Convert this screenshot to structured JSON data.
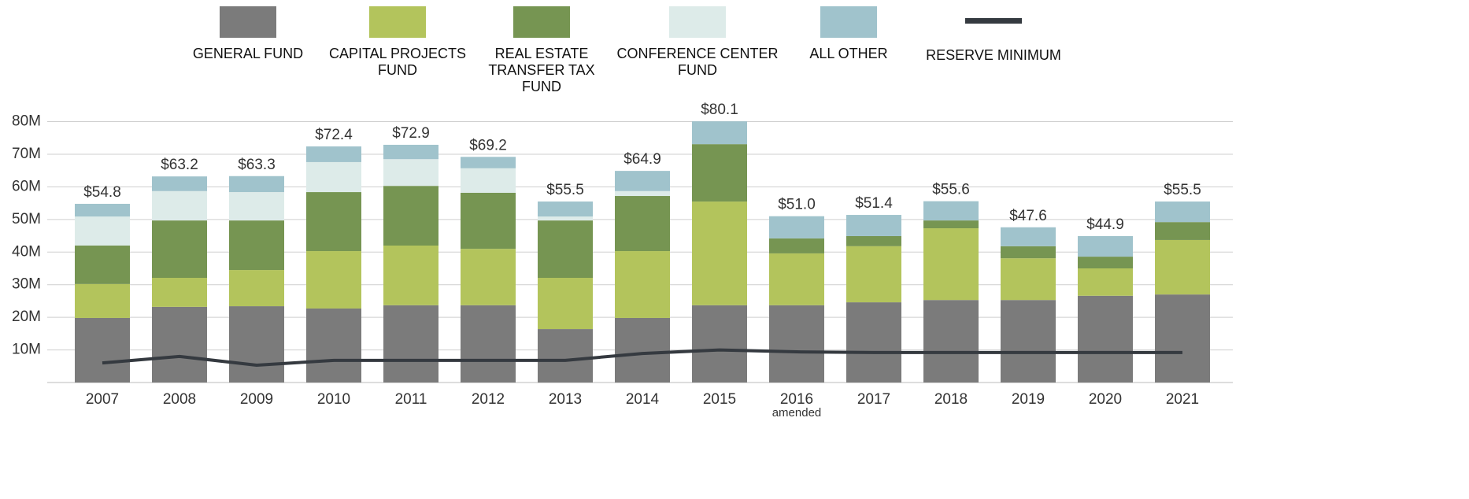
{
  "chart_data": {
    "type": "stacked_bar_line",
    "categories": [
      "2007",
      "2008",
      "2009",
      "2010",
      "2011",
      "2012",
      "2013",
      "2014",
      "2015",
      "2016",
      "2017",
      "2018",
      "2019",
      "2020",
      "2021"
    ],
    "category_note": {
      "category": 9,
      "text": "amended"
    },
    "series": [
      {
        "name": "GENERAL FUND",
        "color": "#7b7b7b",
        "values": [
          19.8,
          23.2,
          23.4,
          22.7,
          23.7,
          23.7,
          16.4,
          19.8,
          23.7,
          23.7,
          24.6,
          25.3,
          25.3,
          26.6,
          27.0
        ]
      },
      {
        "name": "CAPITAL PROJECTS FUND",
        "color": "#b3c45c",
        "values": [
          10.4,
          8.9,
          11.1,
          17.6,
          18.3,
          17.3,
          15.7,
          20.5,
          31.8,
          15.9,
          17.2,
          22.0,
          12.8,
          8.4,
          16.7
        ]
      },
      {
        "name": "REAL ESTATE TRANSFER TAX FUND",
        "color": "#769552",
        "values": [
          11.8,
          17.6,
          15.2,
          18.1,
          18.3,
          17.2,
          17.6,
          16.9,
          17.6,
          4.6,
          3.1,
          2.4,
          3.7,
          3.6,
          5.5
        ]
      },
      {
        "name": "CONFERENCE CENTER FUND",
        "color": "#ddebe9",
        "values": [
          8.9,
          9.0,
          8.7,
          9.2,
          8.2,
          7.5,
          1.2,
          1.5,
          0,
          0,
          0,
          0,
          0,
          0,
          0
        ]
      },
      {
        "name": "ALL OTHER",
        "color": "#a0c3cc",
        "values": [
          3.9,
          4.5,
          4.9,
          4.8,
          4.4,
          3.5,
          4.6,
          6.2,
          7.0,
          6.8,
          6.5,
          5.9,
          5.8,
          6.3,
          6.3
        ]
      },
      {
        "name": "RESERVE MINIMUM",
        "color": "#353a40",
        "kind": "line",
        "values": [
          6.0,
          8.0,
          5.3,
          6.8,
          6.8,
          6.8,
          6.8,
          8.9,
          10.0,
          9.4,
          9.2,
          9.2,
          9.2,
          9.2,
          9.2
        ]
      }
    ],
    "totals": {
      "values": [
        54.8,
        63.2,
        63.3,
        72.4,
        72.9,
        69.2,
        55.5,
        64.9,
        80.1,
        51.0,
        51.4,
        55.6,
        47.6,
        44.9,
        55.5
      ],
      "value_labels": [
        "$54.8",
        "$63.2",
        "$63.3",
        "$72.4",
        "$72.9",
        "$69.2",
        "$55.5",
        "$64.9",
        "$80.1",
        "$51.0",
        "$51.4",
        "$55.6",
        "$47.6",
        "$44.9",
        "$55.5"
      ]
    },
    "ylim": [
      0,
      88
    ],
    "yticks": [
      {
        "value": 10,
        "label": "10M"
      },
      {
        "value": 20,
        "label": "20M"
      },
      {
        "value": 30,
        "label": "30M"
      },
      {
        "value": 40,
        "label": "40M"
      },
      {
        "value": 50,
        "label": "50M"
      },
      {
        "value": 60,
        "label": "60M"
      },
      {
        "value": 70,
        "label": "70M"
      },
      {
        "value": 80,
        "label": "80M"
      }
    ],
    "grid": true,
    "legend": "top"
  }
}
